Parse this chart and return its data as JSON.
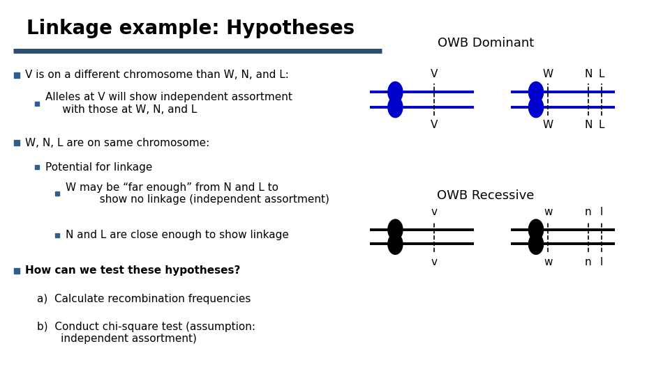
{
  "title": "Linkage example: Hypotheses",
  "title_fontsize": 20,
  "title_font": "bold",
  "divider_color": "#2d4f6b",
  "text_color": "#000000",
  "bullet_color": "#2d5f8a",
  "body_fontsize": 11,
  "bullet1": "V is on a different chromosome than W, N, and L:",
  "bullet1a": "Alleles at V will show independent assortment\n     with those at W, N, and L",
  "bullet2": "W, N, L are on same chromosome:",
  "bullet2a": "Potential for linkage",
  "bullet2a1": "W may be “far enough” from N and L to\n          show no linkage (independent assortment)",
  "bullet2a2": "N and L are close enough to show linkage",
  "bullet3": "How can we test these hypotheses?",
  "bullet3a": "a)  Calculate recombination frequencies",
  "bullet3b": "b)  Conduct chi-square test (assumption:\n       independent assortment)",
  "owb_dominant_label": "OWB Dominant",
  "owb_recessive_label": "OWB Recessive",
  "dominant_color": "#0000cc",
  "recessive_color": "#000000",
  "label_fontsize": 13
}
